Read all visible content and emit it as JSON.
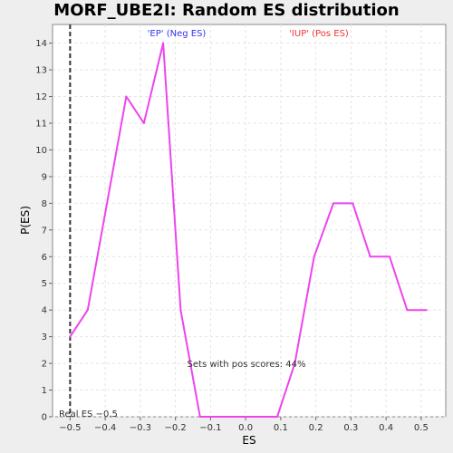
{
  "chart_data": {
    "type": "line",
    "title": "MORF_UBE2I: Random ES distribution",
    "xlabel": "ES",
    "ylabel": "P(ES)",
    "xlim": [
      -0.55,
      0.57
    ],
    "ylim": [
      0,
      14.7
    ],
    "xticks": [
      -0.5,
      -0.4,
      -0.3,
      -0.2,
      -0.1,
      0.0,
      0.1,
      0.2,
      0.3,
      0.4,
      0.5
    ],
    "xtick_labels": [
      "−0.5",
      "−0.4",
      "−0.3",
      "−0.2",
      "−0.1",
      "0.0",
      "0.1",
      "0.2",
      "0.3",
      "0.4",
      "0.5"
    ],
    "yticks": [
      0,
      1,
      2,
      3,
      4,
      5,
      6,
      7,
      8,
      9,
      10,
      11,
      12,
      13,
      14
    ],
    "grid": true,
    "series": [
      {
        "color": "#ee44ee",
        "x": [
          -0.5,
          -0.45,
          -0.34,
          -0.29,
          -0.235,
          -0.185,
          -0.13,
          -0.08,
          -0.02,
          0.035,
          0.09,
          0.14,
          0.195,
          0.25,
          0.305,
          0.355,
          0.41,
          0.46,
          0.515
        ],
        "y": [
          3,
          4,
          12,
          11,
          14,
          4,
          0,
          0,
          0,
          0,
          0,
          2,
          6,
          8,
          8,
          6,
          6,
          4,
          4
        ]
      }
    ],
    "real_es": {
      "x": -0.5,
      "color": "#333333"
    },
    "annotations": {
      "neg_label": "'EP' (Neg ES)",
      "neg_color": "#3333ee",
      "pos_label": "'IUP' (Pos ES)",
      "pos_color": "#ee3333",
      "pos_scores": "Sets with pos scores: 44%",
      "real_es_label": "Real ES −0.5"
    }
  }
}
